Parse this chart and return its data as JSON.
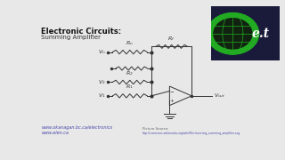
{
  "title_line1": "Electronic Circuits:",
  "title_line2": "Summing Amplifier",
  "bg_color": "#e8e8e8",
  "link1": "www.okanagan.bc.ca/electronics",
  "link2": "www.elen.ca",
  "source_text": "Picture Source:",
  "source_url": "http://commons.wikimedia.org/wiki/File:Inverting_summing_amplifier.svg",
  "wire_color": "#333333",
  "label_color": "#333333",
  "link_color": "#4444aa",
  "vout_label": "$V_{out}$",
  "v1_label": "$V_1$",
  "v2_label": "$V_2$",
  "vn_label": "$V_n$",
  "r1_label": "$R_1$",
  "r2_label": "$R_2$",
  "rn_label": "$R_n$",
  "rf_label": "$R_f$",
  "logo_bg": "#1a1a3a",
  "logo_green": "#22aa22",
  "logo_text_color": "#ffffff"
}
